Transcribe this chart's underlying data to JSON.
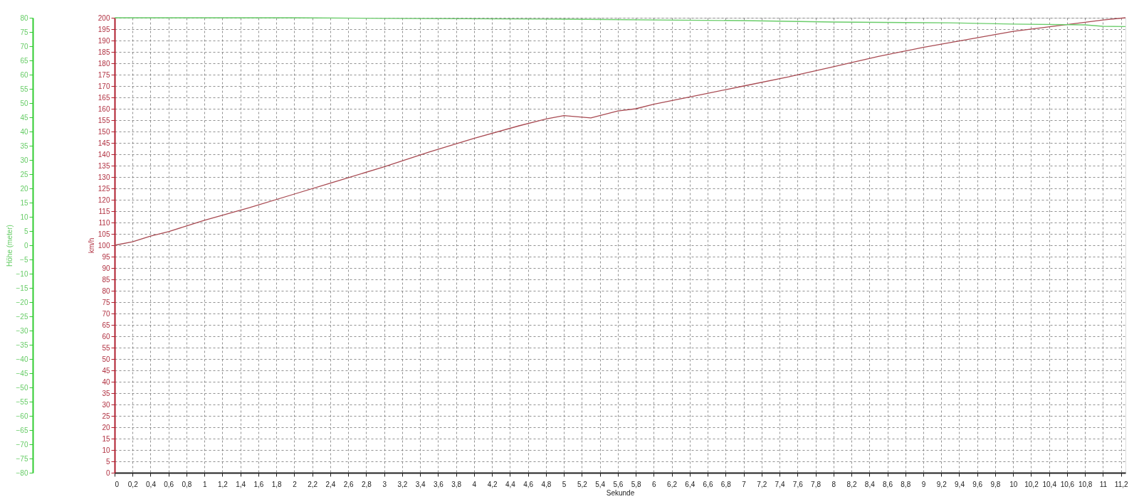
{
  "chart_data": {
    "type": "line",
    "xlabel": "Sekunde",
    "ylabel": "km/h",
    "y2label": "Höhe (meter)",
    "xlim": [
      0,
      11.25
    ],
    "xticks": [
      0,
      {
        "value": 0.2,
        "label": "0,2"
      },
      {
        "value": 0.4,
        "label": "0,4"
      },
      {
        "value": 0.6,
        "label": "0,6"
      },
      {
        "value": 0.8,
        "label": "0,8"
      },
      1,
      {
        "value": 1.2,
        "label": "1,2"
      },
      {
        "value": 1.4,
        "label": "1,4"
      },
      {
        "value": 1.6,
        "label": "1,6"
      },
      {
        "value": 1.8,
        "label": "1,8"
      },
      2,
      {
        "value": 2.2,
        "label": "2,2"
      },
      {
        "value": 2.4,
        "label": "2,4"
      },
      {
        "value": 2.6,
        "label": "2,6"
      },
      {
        "value": 2.8,
        "label": "2,8"
      },
      3,
      {
        "value": 3.2,
        "label": "3,2"
      },
      {
        "value": 3.4,
        "label": "3,4"
      },
      {
        "value": 3.6,
        "label": "3,6"
      },
      {
        "value": 3.8,
        "label": "3,8"
      },
      4,
      {
        "value": 4.2,
        "label": "4,2"
      },
      {
        "value": 4.4,
        "label": "4,4"
      },
      {
        "value": 4.6,
        "label": "4,6"
      },
      {
        "value": 4.8,
        "label": "4,8"
      },
      5,
      {
        "value": 5.2,
        "label": "5,2"
      },
      {
        "value": 5.4,
        "label": "5,4"
      },
      {
        "value": 5.6,
        "label": "5,6"
      },
      {
        "value": 5.8,
        "label": "5,8"
      },
      6,
      {
        "value": 6.2,
        "label": "6,2"
      },
      {
        "value": 6.4,
        "label": "6,4"
      },
      {
        "value": 6.6,
        "label": "6,6"
      },
      {
        "value": 6.8,
        "label": "6,8"
      },
      7,
      {
        "value": 7.2,
        "label": "7,2"
      },
      {
        "value": 7.4,
        "label": "7,4"
      },
      {
        "value": 7.6,
        "label": "7,6"
      },
      {
        "value": 7.8,
        "label": "7,8"
      },
      8,
      {
        "value": 8.2,
        "label": "8,2"
      },
      {
        "value": 8.4,
        "label": "8,4"
      },
      {
        "value": 8.6,
        "label": "8,6"
      },
      {
        "value": 8.8,
        "label": "8,8"
      },
      9,
      {
        "value": 9.2,
        "label": "9,2"
      },
      {
        "value": 9.4,
        "label": "9,4"
      },
      {
        "value": 9.6,
        "label": "9,6"
      },
      {
        "value": 9.8,
        "label": "9,8"
      },
      10,
      {
        "value": 10.2,
        "label": "10,2"
      },
      {
        "value": 10.4,
        "label": "10,4"
      },
      {
        "value": 10.6,
        "label": "10,6"
      },
      {
        "value": 10.8,
        "label": "10,8"
      },
      11,
      {
        "value": 11.2,
        "label": "11,2"
      }
    ],
    "ylim": [
      0,
      200
    ],
    "yticks": [
      0,
      5,
      10,
      15,
      20,
      25,
      30,
      35,
      40,
      45,
      50,
      55,
      60,
      65,
      70,
      75,
      80,
      85,
      90,
      95,
      100,
      105,
      110,
      115,
      120,
      125,
      130,
      135,
      140,
      145,
      150,
      155,
      160,
      165,
      170,
      175,
      180,
      185,
      190,
      195,
      200
    ],
    "y2lim": [
      -80,
      80
    ],
    "y2ticks": [
      -80,
      -75,
      -70,
      -65,
      -60,
      -55,
      -50,
      -45,
      -40,
      -35,
      -30,
      -25,
      -20,
      -15,
      -10,
      -5,
      0,
      5,
      10,
      15,
      20,
      25,
      30,
      35,
      40,
      45,
      50,
      55,
      60,
      65,
      70,
      75,
      80
    ],
    "grid": true,
    "line_style": "solid",
    "series": [
      {
        "color": "#a84a52",
        "x": [
          0,
          0.2,
          0.4,
          0.6,
          0.8,
          1,
          1.5,
          2,
          2.5,
          3,
          3.5,
          4,
          4.5,
          4.8,
          5,
          5.3,
          5.6,
          5.8,
          6,
          6.5,
          7,
          7.5,
          8,
          8.5,
          9,
          9.5,
          10,
          10.5,
          11,
          11.25
        ],
        "values": [
          100,
          101.5,
          104,
          106,
          108.5,
          111,
          116.5,
          122.5,
          128.5,
          134.5,
          141,
          147,
          152.5,
          155.5,
          157,
          156,
          159,
          160,
          162,
          166,
          170,
          174,
          178.5,
          183,
          187,
          190.5,
          194,
          196.5,
          199,
          200
        ]
      },
      {
        "color": "#6acd6a",
        "axis": "y2",
        "x": [
          0,
          2,
          3,
          5,
          7,
          8,
          9.3,
          10,
          10.8,
          11,
          11.25
        ],
        "values": [
          80,
          80,
          79.8,
          79.5,
          79,
          78.5,
          78.2,
          77.8,
          77.5,
          77,
          76.9
        ]
      }
    ]
  }
}
